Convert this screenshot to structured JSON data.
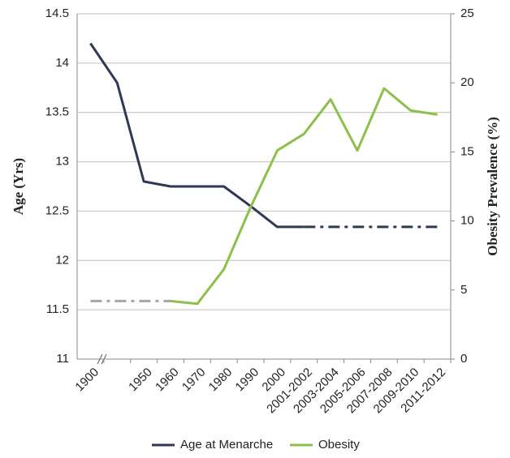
{
  "chart_data": {
    "type": "line",
    "categories": [
      "1900",
      null,
      "1950",
      "1960",
      "1970",
      "1980",
      "1990",
      "2000",
      "2001-2002",
      "2003-2004",
      "2005-2006",
      "2007-2008",
      "2009-2010",
      "2011-2012"
    ],
    "ylabel": "Age (Yrs)",
    "y2label": "Obesity Prevalence (%)",
    "ylim": [
      11,
      14.5
    ],
    "yticks": [
      11,
      11.5,
      12,
      12.5,
      13,
      13.5,
      14,
      14.5
    ],
    "y2lim": [
      0,
      25
    ],
    "y2ticks": [
      0,
      5,
      10,
      15,
      20,
      25
    ],
    "grid": true,
    "legend": "bottom",
    "series": [
      {
        "name": "Age at Menarche",
        "color": "#2f3a52",
        "values": [
          14.2,
          13.8,
          12.8,
          12.75,
          12.75,
          12.75,
          12.55,
          12.34,
          12.34,
          null,
          null,
          null,
          null,
          null
        ],
        "dashed_values": [
          null,
          null,
          null,
          null,
          null,
          null,
          null,
          null,
          12.34,
          12.34,
          12.34,
          12.34,
          12.34,
          12.34
        ],
        "dash_color": "#2f3a52"
      },
      {
        "name": "Obesity",
        "color": "#8dbf4b",
        "axis": "y2",
        "values": [
          null,
          null,
          null,
          4.2,
          4.0,
          6.5,
          11.0,
          15.1,
          16.3,
          18.8,
          15.1,
          19.6,
          18.0,
          17.7
        ],
        "dashed_values": [
          4.2,
          4.2,
          4.2,
          4.2,
          null,
          null,
          null,
          null,
          null,
          null,
          null,
          null,
          null,
          null
        ],
        "dash_color": "#a6a6a6"
      }
    ]
  }
}
